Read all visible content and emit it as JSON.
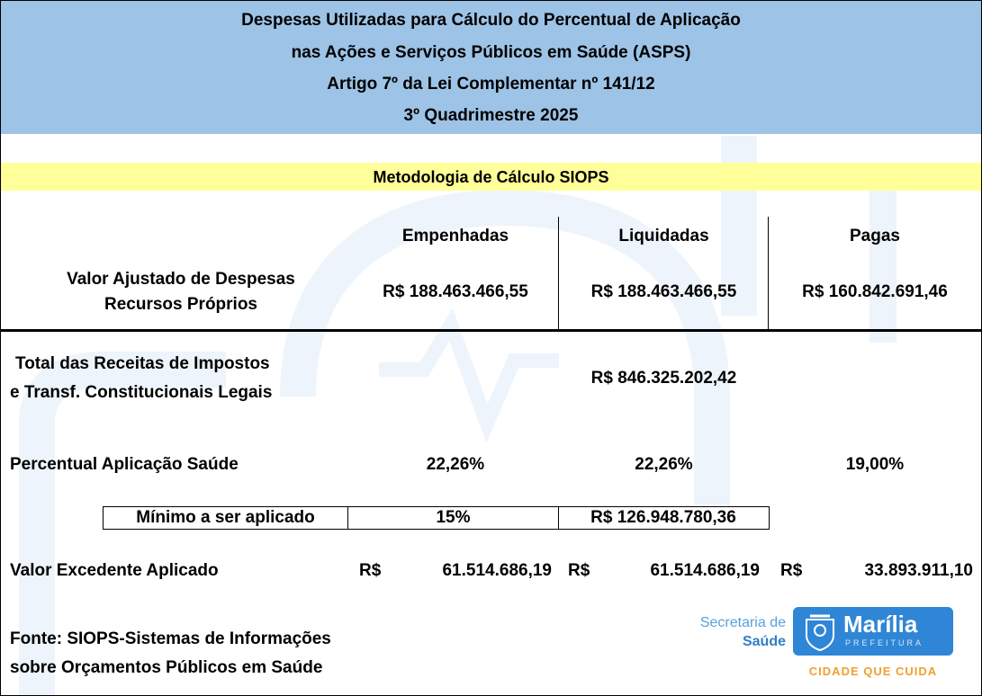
{
  "header": {
    "title_lines": [
      "Despesas Utilizadas para Cálculo do Percentual de Aplicação",
      "nas Ações e Serviços Públicos em Saúde (ASPS)",
      "Artigo 7º da Lei Complementar nº 141/12",
      "3º Quadrimestre 2025"
    ]
  },
  "methodology": "Metodologia de Cálculo SIOPS",
  "columns": [
    "Empenhadas",
    "Liquidadas",
    "Pagas"
  ],
  "despesas": {
    "label_lines": [
      "Valor Ajustado de Despesas",
      "Recursos Próprios"
    ],
    "values": [
      "R$ 188.463.466,55",
      "R$ 188.463.466,55",
      "R$ 160.842.691,46"
    ]
  },
  "receitas": {
    "label_lines": [
      "Total das Receitas de Impostos",
      "e Transf. Constitucionais Legais"
    ],
    "value": "R$ 846.325.202,42"
  },
  "percentual": {
    "label": "Percentual Aplicação Saúde",
    "values": [
      "22,26%",
      "22,26%",
      "19,00%"
    ]
  },
  "minimo": {
    "label": "Mínimo a ser aplicado",
    "percent": "15%",
    "value": "R$ 126.948.780,36"
  },
  "excedente": {
    "label": "Valor Excedente Aplicado",
    "values": [
      {
        "currency": "R$",
        "amount": "61.514.686,19"
      },
      {
        "currency": "R$",
        "amount": "61.514.686,19"
      },
      {
        "currency": "R$",
        "amount": "33.893.911,10"
      }
    ]
  },
  "fonte": {
    "lines": [
      "Fonte: SIOPS-Sistemas de Informações",
      "sobre Orçamentos Públicos em Saúde"
    ]
  },
  "logo": {
    "secretaria": "Secretaria de",
    "saude": "Saúde",
    "city": "Marília",
    "prefeitura": "PREFEITURA",
    "slogan": "CIDADE QUE CUIDA"
  }
}
